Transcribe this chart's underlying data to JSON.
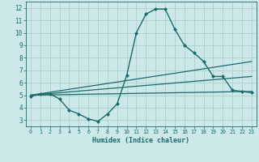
{
  "xlabel": "Humidex (Indice chaleur)",
  "ylabel": "",
  "bg_color": "#cde8e8",
  "line_color": "#1a6b6b",
  "grid_color": "#aed0d0",
  "xlim": [
    -0.5,
    23.5
  ],
  "ylim": [
    2.5,
    12.5
  ],
  "xticks": [
    0,
    1,
    2,
    3,
    4,
    5,
    6,
    7,
    8,
    9,
    10,
    11,
    12,
    13,
    14,
    15,
    16,
    17,
    18,
    19,
    20,
    21,
    22,
    23
  ],
  "yticks": [
    3,
    4,
    5,
    6,
    7,
    8,
    9,
    10,
    11,
    12
  ],
  "series": [
    {
      "x": [
        0,
        1,
        2,
        3,
        4,
        5,
        6,
        7,
        8,
        9,
        10,
        11,
        12,
        13,
        14,
        15,
        16,
        17,
        18,
        19,
        20,
        21,
        22,
        23
      ],
      "y": [
        4.9,
        5.1,
        5.1,
        4.7,
        3.8,
        3.5,
        3.1,
        2.9,
        3.5,
        4.3,
        6.6,
        10.0,
        11.5,
        11.9,
        11.9,
        10.3,
        9.0,
        8.4,
        7.7,
        6.5,
        6.5,
        5.4,
        5.3,
        5.2
      ],
      "marker": "D",
      "markersize": 2.0,
      "linewidth": 1.0
    },
    {
      "x": [
        0,
        23
      ],
      "y": [
        5.0,
        7.7
      ],
      "marker": null,
      "markersize": 0,
      "linewidth": 0.9
    },
    {
      "x": [
        0,
        23
      ],
      "y": [
        5.0,
        6.5
      ],
      "marker": null,
      "markersize": 0,
      "linewidth": 0.9
    },
    {
      "x": [
        0,
        23
      ],
      "y": [
        5.0,
        5.3
      ],
      "marker": null,
      "markersize": 0,
      "linewidth": 0.9
    }
  ]
}
